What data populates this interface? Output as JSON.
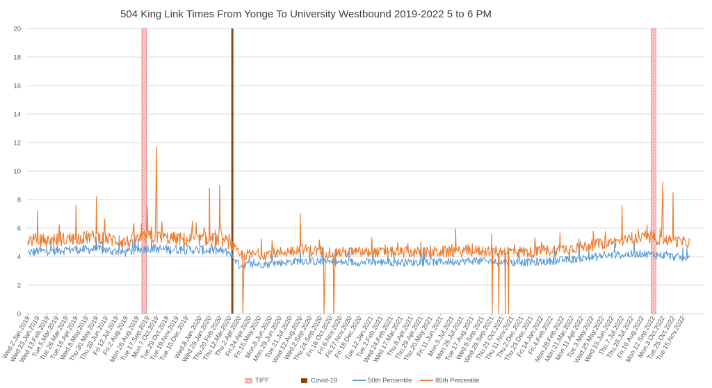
{
  "chart_data": {
    "type": "line",
    "title": "504 King Link Times From Yonge To University Westbound 2019-2022 5 to 6 PM",
    "xlabel": "",
    "ylabel": "",
    "ylim": [
      0,
      20
    ],
    "yticks": [
      0,
      2,
      4,
      6,
      8,
      10,
      12,
      14,
      16,
      18,
      20
    ],
    "grid": true,
    "legend_position": "bottom",
    "x_tick_labels": [
      "Wed.2.Jan.2019",
      "Wed.23.Jan.2019",
      "Wed.13.Feb.2019",
      "Tue.5.Mar.2019",
      "Tue.26.Mar.2019",
      "Tue.16.Apr.2019",
      "Wed.8.May.2019",
      "Thu.30.May.2019",
      "Thu.20.Jun.2019",
      "Fri.12.Jul.2019",
      "Fri.2.Aug.2019",
      "Mon.26.Aug.2019",
      "Tue.17.Sep.2019",
      "Mon.7.Oct.2019",
      "Tue.29.Oct.2019",
      "Tue.19.Nov.2019",
      "Tue.10.Dec.2019",
      "Wed.8.Jan.2020",
      "Wed.29.Jan.2020",
      "Thu.20.Feb.2020",
      "Thu.12.Mar.2020",
      "Thu.2.Apr.2020",
      "Fri.24.Apr.2020",
      "Fri.15.May.2020",
      "Mon.8.Jun.2020",
      "Mon.29.Jun.2020",
      "Tue.21.Jul.2020",
      "Wed.12.Aug.2020",
      "Wed.2.Sep.2020",
      "Thu.24.Sep.2020",
      "Fri.16.Oct.2020",
      "Fri.6.Nov.2020",
      "Fri.27.Nov.2020",
      "Fri.18.Dec.2020",
      "Tue.12.Jan.2021",
      "Tue.2.Feb.2021",
      "Wed.24.Feb.2021",
      "Wed.17.Mar.2021",
      "Thu.8.Apr.2021",
      "Thu.29.Apr.2021",
      "Thu.20.May.2021",
      "Fri.11.Jun.2021",
      "Mon.5.Jul.2021",
      "Mon.26.Jul.2021",
      "Tue.17.Aug.2021",
      "Wed.8.Sep.2021",
      "Wed.29.Sep.2021",
      "Thu.21.Oct.2021",
      "Thu.11.Nov.2021",
      "Thu.2.Dec.2021",
      "Thu.23.Dec.2021",
      "Fri.14.Jan.2022",
      "Fri.4.Feb.2022",
      "Mon.28.Feb.2022",
      "Mon.21.Mar.2022",
      "Mon.11.Apr.2022",
      "Tue.3.May.2022",
      "Wed.25.May.2022",
      "Wed.15.Jun.2022",
      "Thu.7.Jul.2022",
      "Thu.28.Jul.2022",
      "Fri.19.Aug.2022",
      "Mon.12.Sep.2022",
      "Mon.3.Oct.2022",
      "Tue.25.Oct.2022",
      "Tue.15.Nov.2022"
    ],
    "series": [
      {
        "name": "TIFF",
        "kind": "event-band",
        "color": "#f4a6a6",
        "events": [
          [
            "Thu.5.Sep.2019",
            "Sun.15.Sep.2019"
          ],
          [
            "Thu.8.Sep.2022",
            "Sun.18.Sep.2022"
          ]
        ]
      },
      {
        "name": "Covid-19",
        "kind": "event-band",
        "color": "#8b4513",
        "events": [
          [
            "Mon.16.Mar.2020",
            "Tue.17.Mar.2020"
          ]
        ]
      },
      {
        "name": "50th Percentile",
        "kind": "line",
        "color": "#5b9bd5",
        "period_means": [
          [
            "Wed.2.Jan.2019",
            4.3
          ],
          [
            "Wed.13.Feb.2019",
            4.4
          ],
          [
            "Tue.16.Apr.2019",
            4.5
          ],
          [
            "Thu.30.May.2019",
            4.5
          ],
          [
            "Fri.2.Aug.2019",
            4.3
          ],
          [
            "Tue.17.Sep.2019",
            4.6
          ],
          [
            "Tue.29.Oct.2019",
            4.5
          ],
          [
            "Tue.10.Dec.2019",
            4.5
          ],
          [
            "Thu.20.Feb.2020",
            4.4
          ],
          [
            "Thu.12.Mar.2020",
            4.3
          ],
          [
            "Thu.2.Apr.2020",
            3.4
          ],
          [
            "Mon.8.Jun.2020",
            3.5
          ],
          [
            "Wed.12.Aug.2020",
            3.7
          ],
          [
            "Fri.16.Oct.2020",
            3.6
          ],
          [
            "Fri.18.Dec.2020",
            3.6
          ],
          [
            "Wed.17.Mar.2021",
            3.6
          ],
          [
            "Thu.20.May.2021",
            3.6
          ],
          [
            "Tue.17.Aug.2021",
            3.7
          ],
          [
            "Thu.21.Oct.2021",
            3.6
          ],
          [
            "Thu.23.Dec.2021",
            3.6
          ],
          [
            "Mon.21.Mar.2022",
            3.8
          ],
          [
            "Wed.15.Jun.2022",
            4.1
          ],
          [
            "Fri.19.Aug.2022",
            4.2
          ],
          [
            "Mon.3.Oct.2022",
            4.1
          ],
          [
            "Tue.15.Nov.2022",
            3.9
          ]
        ]
      },
      {
        "name": "85th Percentile",
        "kind": "line",
        "color": "#ed7d31",
        "period_means": [
          [
            "Wed.2.Jan.2019",
            5.2
          ],
          [
            "Wed.13.Feb.2019",
            5.1
          ],
          [
            "Tue.16.Apr.2019",
            5.3
          ],
          [
            "Thu.30.May.2019",
            5.4
          ],
          [
            "Fri.2.Aug.2019",
            5.0
          ],
          [
            "Tue.17.Sep.2019",
            5.4
          ],
          [
            "Tue.29.Oct.2019",
            5.3
          ],
          [
            "Tue.10.Dec.2019",
            5.2
          ],
          [
            "Thu.20.Feb.2020",
            5.2
          ],
          [
            "Thu.12.Mar.2020",
            5.0
          ],
          [
            "Thu.2.Apr.2020",
            4.1
          ],
          [
            "Mon.8.Jun.2020",
            4.2
          ],
          [
            "Wed.12.Aug.2020",
            4.5
          ],
          [
            "Fri.16.Oct.2020",
            4.3
          ],
          [
            "Fri.18.Dec.2020",
            4.3
          ],
          [
            "Wed.17.Mar.2021",
            4.3
          ],
          [
            "Thu.20.May.2021",
            4.3
          ],
          [
            "Tue.17.Aug.2021",
            4.4
          ],
          [
            "Thu.21.Oct.2021",
            4.4
          ],
          [
            "Thu.23.Dec.2021",
            4.3
          ],
          [
            "Mon.21.Mar.2022",
            4.6
          ],
          [
            "Wed.15.Jun.2022",
            5.0
          ],
          [
            "Fri.19.Aug.2022",
            5.3
          ],
          [
            "Mon.3.Oct.2022",
            5.2
          ],
          [
            "Tue.15.Nov.2022",
            5.0
          ]
        ],
        "peaks": [
          [
            "Mon.7.Oct.2019",
            11.7
          ],
          [
            "Thu.30.May.2019",
            8.2
          ],
          [
            "Wed.29.Jan.2020",
            8.8
          ],
          [
            "Thu.20.Feb.2020",
            9.0
          ],
          [
            "Tue.16.Apr.2019",
            7.6
          ],
          [
            "Wed.23.Jan.2019",
            7.2
          ],
          [
            "Wed.12.Aug.2020",
            7.0
          ],
          [
            "Tue.17.Sep.2019",
            7.5
          ],
          [
            "Thu.7.Jul.2022",
            7.6
          ],
          [
            "Mon.3.Oct.2022",
            9.2
          ],
          [
            "Tue.25.Oct.2022",
            8.5
          ]
        ],
        "dropouts": [
          [
            "Fri.10.Apr.2020",
            0
          ],
          [
            "Fri.2.Oct.2020",
            0
          ],
          [
            "Fri.23.Oct.2020",
            0
          ],
          [
            "Thu.30.Sep.2021",
            0
          ],
          [
            "Thu.14.Oct.2021",
            0
          ],
          [
            "Thu.28.Oct.2021",
            0
          ],
          [
            "Thu.4.Nov.2021",
            0
          ]
        ]
      }
    ]
  }
}
